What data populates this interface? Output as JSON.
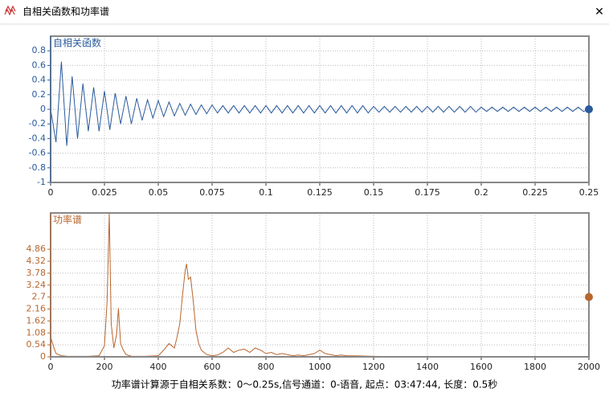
{
  "window": {
    "title": "自相关函数和功率谱",
    "close": "✕"
  },
  "charts": [
    {
      "type": "line",
      "title": "自相关函数",
      "xlim": [
        0,
        0.25
      ],
      "xticks": [
        0,
        0.025,
        0.05,
        0.075,
        0.1,
        0.125,
        0.15,
        0.175,
        0.2,
        0.225,
        0.25
      ],
      "ylim": [
        -1,
        1
      ],
      "yticks": [
        -1,
        -0.8,
        -0.6,
        -0.4,
        -0.2,
        0,
        0.2,
        0.4,
        0.6,
        0.8
      ],
      "grid": true,
      "cursor": {
        "x": 0.25,
        "y": 0
      },
      "series": [
        {
          "color": "#2a5b9c",
          "x": [
            0,
            0.0025,
            0.005,
            0.0075,
            0.01,
            0.0125,
            0.015,
            0.0175,
            0.02,
            0.0225,
            0.025,
            0.0275,
            0.03,
            0.0325,
            0.035,
            0.0375,
            0.04,
            0.0425,
            0.045,
            0.0475,
            0.05,
            0.0525,
            0.055,
            0.0575,
            0.06,
            0.0625,
            0.065,
            0.0675,
            0.07,
            0.0725,
            0.075,
            0.0775,
            0.08,
            0.0825,
            0.085,
            0.0875,
            0.09,
            0.0925,
            0.095,
            0.0975,
            0.1,
            0.1025,
            0.105,
            0.1075,
            0.11,
            0.1125,
            0.115,
            0.1175,
            0.12,
            0.1225,
            0.125,
            0.1275,
            0.13,
            0.1325,
            0.135,
            0.1375,
            0.14,
            0.1425,
            0.145,
            0.1475,
            0.15,
            0.1525,
            0.155,
            0.1575,
            0.16,
            0.1625,
            0.165,
            0.1675,
            0.17,
            0.1725,
            0.175,
            0.1775,
            0.18,
            0.1825,
            0.185,
            0.1875,
            0.19,
            0.1925,
            0.195,
            0.1975,
            0.2,
            0.2025,
            0.205,
            0.2075,
            0.21,
            0.2125,
            0.215,
            0.2175,
            0.22,
            0.2225,
            0.225,
            0.2275,
            0.23,
            0.2325,
            0.235,
            0.2375,
            0.24,
            0.2425,
            0.245,
            0.2475,
            0.25
          ],
          "values": [
            0,
            -0.45,
            0.65,
            -0.5,
            0.45,
            -0.4,
            0.35,
            -0.3,
            0.3,
            -0.3,
            0.25,
            -0.28,
            0.22,
            -0.2,
            0.18,
            -0.2,
            0.15,
            -0.15,
            0.13,
            -0.12,
            0.12,
            -0.1,
            0.1,
            -0.09,
            0.08,
            -0.08,
            0.07,
            -0.07,
            0.06,
            -0.06,
            0.06,
            -0.05,
            0.05,
            -0.05,
            0.05,
            -0.05,
            0.05,
            -0.05,
            0.05,
            -0.05,
            0.05,
            -0.05,
            0.05,
            -0.05,
            0.05,
            -0.05,
            0.05,
            -0.05,
            0.05,
            -0.05,
            0.05,
            -0.05,
            0.05,
            -0.05,
            0.05,
            -0.05,
            0.05,
            -0.05,
            0.05,
            -0.05,
            0.04,
            -0.04,
            0.04,
            -0.04,
            0.04,
            -0.04,
            0.04,
            -0.04,
            0.04,
            -0.04,
            0.04,
            -0.04,
            0.04,
            -0.04,
            0.04,
            -0.04,
            0.04,
            -0.04,
            0.04,
            -0.04,
            0.03,
            -0.03,
            0.03,
            -0.03,
            0.03,
            -0.03,
            0.03,
            -0.03,
            0.03,
            -0.03,
            0.03,
            -0.03,
            0.03,
            -0.03,
            0.03,
            -0.03,
            0.03,
            -0.03,
            0.03,
            -0.03,
            0
          ]
        }
      ]
    },
    {
      "type": "line",
      "title": "功率谱",
      "xlim": [
        0,
        2000
      ],
      "xticks": [
        0,
        200,
        400,
        600,
        800,
        1000,
        1200,
        1400,
        1600,
        1800,
        2000
      ],
      "ylim": [
        0,
        6.5
      ],
      "yticks": [
        0,
        0.54,
        1.08,
        1.62,
        2.16,
        2.7,
        3.24,
        3.78,
        4.32,
        4.86
      ],
      "grid": true,
      "cursor": {
        "x": 2000,
        "y": 2.7
      },
      "series": [
        {
          "color": "#b8662f",
          "x": [
            0,
            10,
            20,
            40,
            60,
            100,
            140,
            180,
            200,
            210,
            218,
            225,
            235,
            245,
            252,
            260,
            270,
            280,
            300,
            350,
            400,
            420,
            440,
            460,
            470,
            480,
            490,
            500,
            505,
            512,
            520,
            530,
            540,
            550,
            560,
            580,
            600,
            620,
            640,
            660,
            680,
            700,
            720,
            740,
            760,
            780,
            800,
            820,
            840,
            860,
            880,
            900,
            920,
            940,
            960,
            980,
            1000,
            1020,
            1040,
            1060,
            1080,
            1100,
            1150,
            1200,
            1300,
            1400,
            1600,
            1800,
            2000
          ],
          "values": [
            0.9,
            0.5,
            0.15,
            0.05,
            0.03,
            0.02,
            0.02,
            0.05,
            0.5,
            2.5,
            6.5,
            1.5,
            0.4,
            1.0,
            2.2,
            0.6,
            0.3,
            0.1,
            0.03,
            0.02,
            0.05,
            0.3,
            0.6,
            0.4,
            0.9,
            1.5,
            2.8,
            3.9,
            4.2,
            3.5,
            3.6,
            2.5,
            1.2,
            0.6,
            0.3,
            0.1,
            0.05,
            0.08,
            0.2,
            0.4,
            0.2,
            0.3,
            0.35,
            0.2,
            0.4,
            0.3,
            0.15,
            0.2,
            0.1,
            0.15,
            0.1,
            0.05,
            0.08,
            0.05,
            0.1,
            0.15,
            0.3,
            0.15,
            0.1,
            0.05,
            0.08,
            0.05,
            0.04,
            0.02,
            0.01,
            0.01,
            0,
            0,
            0
          ]
        }
      ]
    }
  ],
  "footer": "功率谱计算源于自相关系数：0～0.25s,信号通道：0-语音, 起点：03:47:44, 长度：0.5秒"
}
